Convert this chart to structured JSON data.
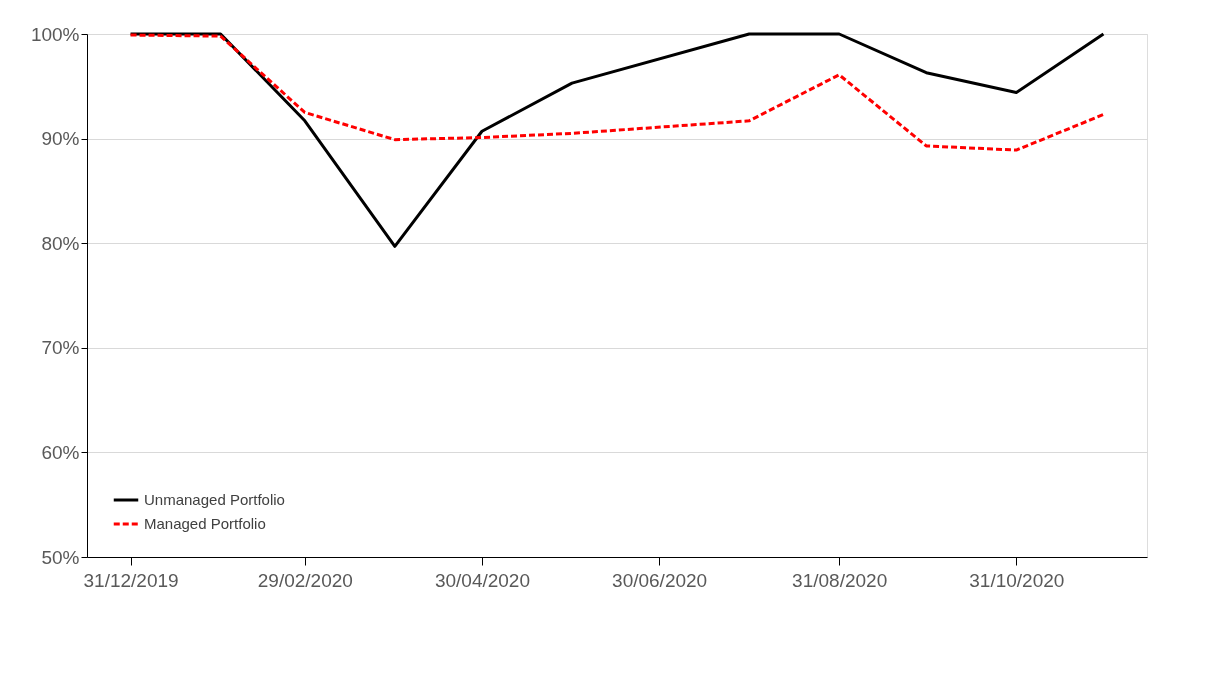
{
  "chart_data": {
    "type": "line",
    "x": [
      "2019-12-31",
      "2020-01-31",
      "2020-02-29",
      "2020-03-31",
      "2020-04-30",
      "2020-05-31",
      "2020-07-31",
      "2020-08-31",
      "2020-09-30",
      "2020-10-31",
      "2020-11-30"
    ],
    "series": [
      {
        "name": "Unmanaged Portfolio",
        "color": "#000000",
        "line_style": "solid",
        "values": [
          100,
          100,
          91.7,
          79.7,
          90.7,
          95.3,
          100,
          100,
          96.3,
          94.4,
          100
        ]
      },
      {
        "name": "Managed Portfolio",
        "color": "#ff0000",
        "line_style": "dashed",
        "values": [
          99.9,
          99.8,
          92.5,
          89.9,
          90.1,
          90.5,
          91.7,
          96.1,
          89.3,
          88.9,
          92.3
        ]
      }
    ],
    "xlim": [
      "2019-12-16",
      "2020-12-15"
    ],
    "xticks": [
      {
        "value": "2019-12-31",
        "label": "31/12/2019"
      },
      {
        "value": "2020-02-29",
        "label": "29/02/2020"
      },
      {
        "value": "2020-04-30",
        "label": "30/04/2020"
      },
      {
        "value": "2020-06-30",
        "label": "30/06/2020"
      },
      {
        "value": "2020-08-31",
        "label": "31/08/2020"
      },
      {
        "value": "2020-10-31",
        "label": "31/10/2020"
      }
    ],
    "ylim": [
      50,
      100
    ],
    "yticks": [
      {
        "value": 50,
        "label": "50%"
      },
      {
        "value": 60,
        "label": "60%"
      },
      {
        "value": 70,
        "label": "70%"
      },
      {
        "value": 80,
        "label": "80%"
      },
      {
        "value": 90,
        "label": "90%"
      },
      {
        "value": 100,
        "label": "100%"
      }
    ],
    "grid": "y",
    "legend": "bottom left",
    "marker": "none"
  }
}
